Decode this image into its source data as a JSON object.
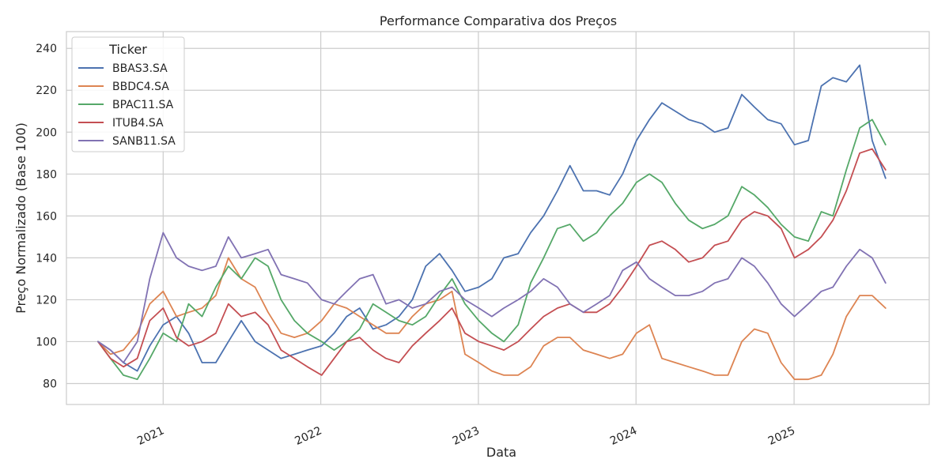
{
  "chart_data": {
    "type": "line",
    "title": "Performance Comparativa dos Preços",
    "xlabel": "Data",
    "ylabel": "Preço Normalizado (Base 100)",
    "x_ticks": [
      "2021",
      "2022",
      "2023",
      "2024",
      "2025"
    ],
    "y_ticks": [
      80,
      100,
      120,
      140,
      160,
      180,
      200,
      220,
      240
    ],
    "xlim": [
      "2020-05-22",
      "2025-11-10"
    ],
    "ylim": [
      70,
      248
    ],
    "grid": true,
    "legend": {
      "title": "Ticker",
      "position": "top-left"
    },
    "x": [
      "2020-08-03",
      "2020-09-01",
      "2020-10-01",
      "2020-11-02",
      "2020-12-01",
      "2021-01-01",
      "2021-02-01",
      "2021-03-01",
      "2021-04-01",
      "2021-05-03",
      "2021-06-01",
      "2021-07-01",
      "2021-08-02",
      "2021-09-01",
      "2021-10-01",
      "2021-11-01",
      "2021-12-01",
      "2022-01-03",
      "2022-02-01",
      "2022-03-02",
      "2022-04-01",
      "2022-05-02",
      "2022-06-01",
      "2022-07-01",
      "2022-08-01",
      "2022-09-01",
      "2022-10-03",
      "2022-11-01",
      "2022-12-01",
      "2023-01-02",
      "2023-02-01",
      "2023-03-01",
      "2023-04-03",
      "2023-05-02",
      "2023-06-01",
      "2023-07-03",
      "2023-08-01",
      "2023-09-01",
      "2023-10-02",
      "2023-11-01",
      "2023-12-01",
      "2024-01-02",
      "2024-02-01",
      "2024-03-01",
      "2024-04-01",
      "2024-05-02",
      "2024-06-03",
      "2024-07-01",
      "2024-08-01",
      "2024-09-02",
      "2024-10-01",
      "2024-11-01",
      "2024-12-02",
      "2025-01-02",
      "2025-02-03",
      "2025-03-05",
      "2025-04-01",
      "2025-05-02",
      "2025-06-02",
      "2025-07-01",
      "2025-08-01"
    ],
    "series": [
      {
        "name": "BBAS3.SA",
        "color": "#4c72b0",
        "values": [
          100,
          96,
          90,
          86,
          98,
          108,
          112,
          104,
          90,
          90,
          100,
          110,
          100,
          96,
          92,
          94,
          96,
          98,
          104,
          112,
          116,
          106,
          108,
          112,
          120,
          136,
          142,
          134,
          124,
          126,
          130,
          140,
          142,
          152,
          160,
          172,
          184,
          172,
          172,
          170,
          180,
          196,
          206,
          214,
          210,
          206,
          204,
          200,
          202,
          218,
          212,
          206,
          204,
          194,
          196,
          222,
          226,
          224,
          232,
          196,
          178
        ]
      },
      {
        "name": "BBDC4.SA",
        "color": "#dd8452",
        "values": [
          100,
          94,
          96,
          104,
          118,
          124,
          112,
          114,
          116,
          122,
          140,
          130,
          126,
          114,
          104,
          102,
          104,
          110,
          118,
          116,
          112,
          108,
          104,
          104,
          112,
          118,
          120,
          124,
          94,
          90,
          86,
          84,
          84,
          88,
          98,
          102,
          102,
          96,
          94,
          92,
          94,
          104,
          108,
          92,
          90,
          88,
          86,
          84,
          84,
          100,
          106,
          104,
          90,
          82,
          82,
          84,
          94,
          112,
          122,
          122,
          116
        ]
      },
      {
        "name": "BPAC11.SA",
        "color": "#55a868",
        "values": [
          100,
          92,
          84,
          82,
          92,
          104,
          100,
          118,
          112,
          126,
          136,
          130,
          140,
          136,
          120,
          110,
          104,
          100,
          96,
          100,
          106,
          118,
          114,
          110,
          108,
          112,
          122,
          130,
          118,
          110,
          104,
          100,
          108,
          128,
          140,
          154,
          156,
          148,
          152,
          160,
          166,
          176,
          180,
          176,
          166,
          158,
          154,
          156,
          160,
          174,
          170,
          164,
          156,
          150,
          148,
          162,
          160,
          182,
          202,
          206,
          194
        ]
      },
      {
        "name": "ITUB4.SA",
        "color": "#c44e52",
        "values": [
          100,
          92,
          88,
          92,
          110,
          116,
          102,
          98,
          100,
          104,
          118,
          112,
          114,
          108,
          96,
          92,
          88,
          84,
          92,
          100,
          102,
          96,
          92,
          90,
          98,
          104,
          110,
          116,
          104,
          100,
          98,
          96,
          100,
          106,
          112,
          116,
          118,
          114,
          114,
          118,
          126,
          136,
          146,
          148,
          144,
          138,
          140,
          146,
          148,
          158,
          162,
          160,
          154,
          140,
          144,
          150,
          158,
          172,
          190,
          192,
          182
        ]
      },
      {
        "name": "SANB11.SA",
        "color": "#8172b3",
        "values": [
          100,
          96,
          90,
          100,
          130,
          152,
          140,
          136,
          134,
          136,
          150,
          140,
          142,
          144,
          132,
          130,
          128,
          120,
          118,
          124,
          130,
          132,
          118,
          120,
          116,
          118,
          124,
          126,
          120,
          116,
          112,
          116,
          120,
          124,
          130,
          126,
          118,
          114,
          118,
          122,
          134,
          138,
          130,
          126,
          122,
          122,
          124,
          128,
          130,
          140,
          136,
          128,
          118,
          112,
          118,
          124,
          126,
          136,
          144,
          140,
          128
        ]
      }
    ]
  }
}
